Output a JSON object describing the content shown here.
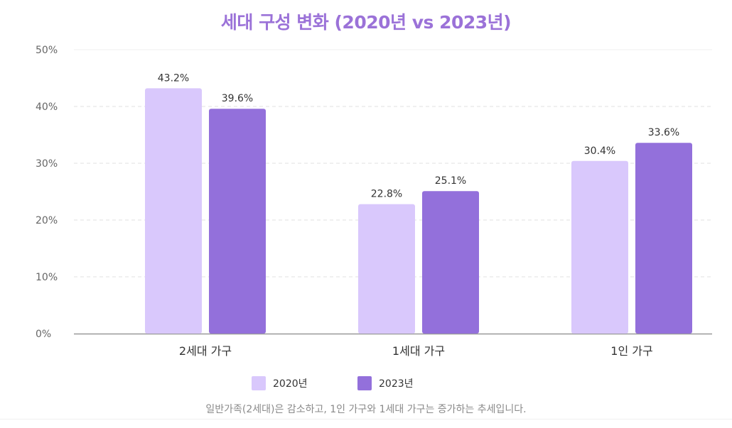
{
  "chart_data": {
    "type": "bar",
    "title": "세대 구성 변화 (2020년 vs 2023년)",
    "categories": [
      "2세대 가구",
      "1세대 가구",
      "1인 가구"
    ],
    "series": [
      {
        "name": "2020년",
        "values": [
          43.2,
          22.8,
          30.4
        ],
        "labels": [
          "43.2%",
          "22.8%",
          "30.4%"
        ],
        "color": "#d9c8fc"
      },
      {
        "name": "2023년",
        "values": [
          39.6,
          25.1,
          33.6
        ],
        "labels": [
          "39.6%",
          "25.1%",
          "33.6%"
        ],
        "color": "#9370db"
      }
    ],
    "ylim": [
      0,
      50
    ],
    "y_ticks": [
      0,
      10,
      20,
      30,
      40,
      50
    ],
    "y_tick_labels": [
      "0%",
      "10%",
      "20%",
      "30%",
      "40%",
      "50%"
    ],
    "grid": true,
    "legend_position": "bottom",
    "note": "일반가족(2세대)은 감소하고, 1인 가구와 1세대 가구는 증가하는 추세입니다."
  },
  "colors": {
    "title": "#9b72d8",
    "grid": "#e0e0e0",
    "axis": "#999999"
  }
}
